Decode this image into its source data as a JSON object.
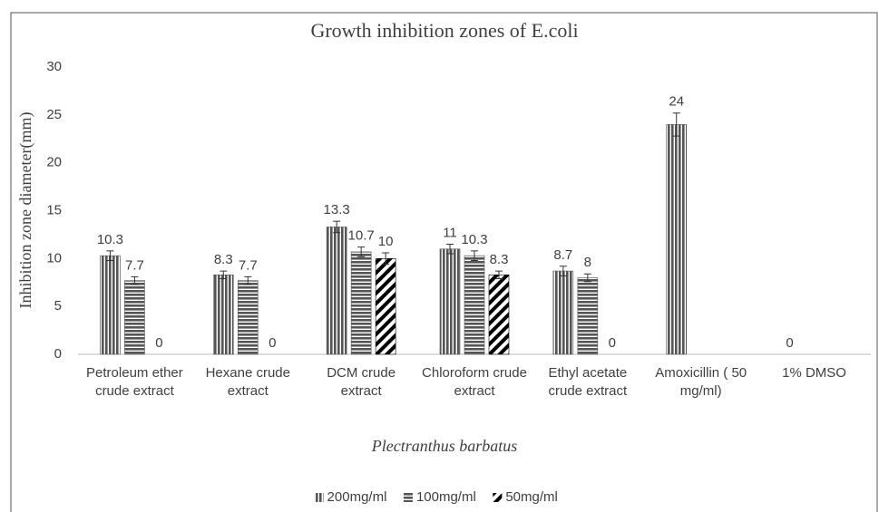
{
  "chart_data": {
    "type": "bar",
    "title": "Growth inhibition zones of E.coli",
    "xlabel": "Plectranthus barbatus",
    "ylabel": "Inhibition zone diameter(mm)",
    "categories": [
      "Petroleum ether crude extract",
      "Hexane crude extract",
      "DCM crude extract",
      "Chloroform crude extract",
      "Ethyl acetate crude extract",
      "Amoxicillin ( 50 mg/ml)",
      "1% DMSO"
    ],
    "series": [
      {
        "name": "200mg/ml",
        "color": "#555555",
        "values": [
          10.3,
          8.3,
          13.3,
          11,
          8.7,
          24,
          0
        ],
        "errors": [
          0.5,
          0.4,
          0.6,
          0.5,
          0.5,
          1.2,
          null
        ]
      },
      {
        "name": "100mg/ml",
        "color": "#555555",
        "values": [
          7.7,
          7.7,
          10.7,
          10.3,
          8,
          null,
          null
        ],
        "errors": [
          0.4,
          0.4,
          0.5,
          0.5,
          0.4,
          null,
          null
        ]
      },
      {
        "name": "50mg/ml",
        "color": "#000000",
        "values": [
          0,
          0,
          10,
          8.3,
          0,
          null,
          null
        ],
        "errors": [
          null,
          null,
          0.6,
          0.4,
          null,
          null,
          null
        ]
      }
    ],
    "ylim": [
      0,
      30
    ],
    "yticks": [
      0,
      5,
      10,
      15,
      20,
      25,
      30
    ],
    "grid": false,
    "legend": "bottom"
  }
}
